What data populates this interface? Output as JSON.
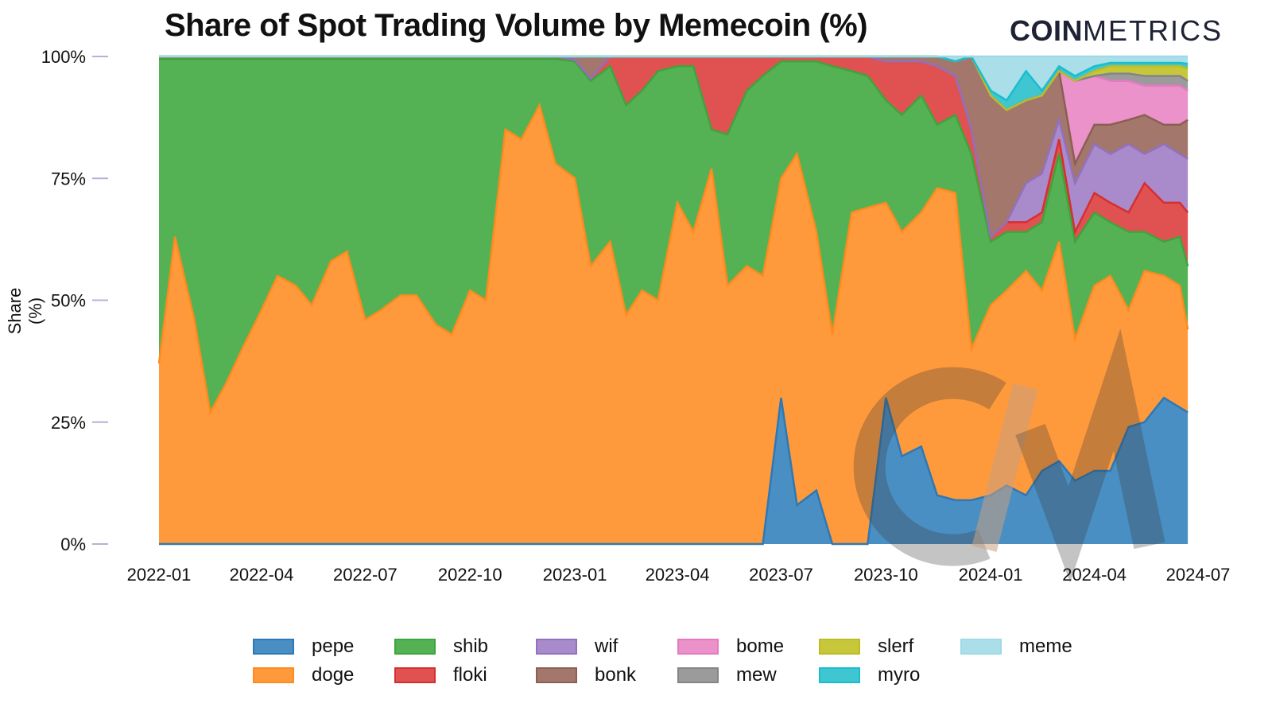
{
  "chart_data": {
    "type": "area",
    "stacked": true,
    "title": "Share of Spot Trading Volume by Memecoin (%)",
    "xlabel": "",
    "ylabel": "Share (%)",
    "ylim": [
      0,
      100
    ],
    "y_ticks": [
      "0%",
      "25%",
      "50%",
      "75%",
      "100%"
    ],
    "y_tick_values": [
      0,
      25,
      50,
      75,
      100
    ],
    "x_ticks": [
      "2022-01",
      "2022-04",
      "2022-07",
      "2022-10",
      "2023-01",
      "2023-04",
      "2023-07",
      "2023-10",
      "2024-01",
      "2024-04",
      "2024-07"
    ],
    "xlim": [
      "2022-01-01",
      "2024-07-01"
    ],
    "grid": false,
    "legend_position": "bottom",
    "x": [
      "2022-01-01",
      "2022-01-15",
      "2022-02-01",
      "2022-02-15",
      "2022-03-01",
      "2022-03-15",
      "2022-04-01",
      "2022-04-15",
      "2022-05-01",
      "2022-05-15",
      "2022-06-01",
      "2022-06-15",
      "2022-07-01",
      "2022-07-15",
      "2022-08-01",
      "2022-08-15",
      "2022-09-01",
      "2022-09-15",
      "2022-10-01",
      "2022-10-15",
      "2022-11-01",
      "2022-11-15",
      "2022-12-01",
      "2022-12-15",
      "2023-01-01",
      "2023-01-15",
      "2023-02-01",
      "2023-02-15",
      "2023-03-01",
      "2023-03-15",
      "2023-04-01",
      "2023-04-15",
      "2023-05-01",
      "2023-05-15",
      "2023-06-01",
      "2023-06-15",
      "2023-07-01",
      "2023-07-15",
      "2023-08-01",
      "2023-08-15",
      "2023-09-01",
      "2023-09-15",
      "2023-10-01",
      "2023-10-15",
      "2023-11-01",
      "2023-11-15",
      "2023-12-01",
      "2023-12-15",
      "2024-01-01",
      "2024-01-15",
      "2024-02-01",
      "2024-02-15",
      "2024-03-01",
      "2024-03-15",
      "2024-04-01",
      "2024-04-15",
      "2024-05-01",
      "2024-05-15",
      "2024-06-01",
      "2024-06-15",
      "2024-06-22"
    ],
    "series": [
      {
        "name": "pepe",
        "color": "#4a8fc3",
        "line": "#2f78b4",
        "values": [
          0,
          0,
          0,
          0,
          0,
          0,
          0,
          0,
          0,
          0,
          0,
          0,
          0,
          0,
          0,
          0,
          0,
          0,
          0,
          0,
          0,
          0,
          0,
          0,
          0,
          0,
          0,
          0,
          0,
          0,
          0,
          0,
          0,
          0,
          0,
          0,
          30,
          8,
          11,
          0,
          0,
          0,
          30,
          18,
          20,
          10,
          9,
          9,
          10,
          12,
          10,
          15,
          17,
          13,
          15,
          15,
          24,
          25,
          30,
          28,
          27
        ]
      },
      {
        "name": "doge",
        "color": "#ff9a3c",
        "line": "#ff8a1e",
        "values": [
          37,
          63,
          46,
          27,
          33,
          40,
          48,
          55,
          53,
          49,
          58,
          60,
          46,
          48,
          51,
          51,
          45,
          43,
          52,
          50,
          85,
          83,
          90,
          78,
          75,
          57,
          62,
          47,
          52,
          50,
          70,
          64,
          77,
          53,
          57,
          55,
          45,
          72,
          53,
          43,
          68,
          69,
          40,
          46,
          48,
          63,
          63,
          31,
          39,
          40,
          46,
          37,
          45,
          29,
          38,
          40,
          24,
          31,
          25,
          25,
          17
        ]
      },
      {
        "name": "shib",
        "color": "#55b254",
        "line": "#3ea43b",
        "values": [
          62.5,
          36.5,
          53.5,
          72.5,
          66.5,
          59.5,
          51.5,
          44.5,
          46.5,
          50.5,
          41.5,
          39.5,
          53.5,
          51.5,
          48.5,
          48.5,
          54.5,
          56.5,
          47.5,
          49.5,
          14.5,
          16.5,
          9.5,
          21.5,
          24,
          38,
          36,
          43,
          41,
          47,
          28,
          34,
          8,
          31,
          36,
          41,
          24,
          19,
          35,
          55,
          29,
          27,
          21,
          24,
          24,
          13,
          16,
          40,
          13,
          12,
          8,
          14,
          18,
          20,
          15,
          11,
          16,
          8,
          7,
          10,
          13
        ]
      },
      {
        "name": "floki",
        "color": "#e05252",
        "line": "#d62f2f",
        "values": [
          0.5,
          0.5,
          0.5,
          0.5,
          0.5,
          0.5,
          0.5,
          0.5,
          0.5,
          0.5,
          0.5,
          0.5,
          0.5,
          0.5,
          0.5,
          0.5,
          0.5,
          0.5,
          0.5,
          0.5,
          0.5,
          0.5,
          0.5,
          0.5,
          0.3,
          0.5,
          2,
          10,
          7,
          3,
          2,
          2,
          15,
          16,
          7,
          4,
          1,
          1,
          1,
          2,
          3,
          4,
          8,
          11,
          7,
          12,
          8,
          5,
          1,
          2,
          2,
          2,
          3,
          2,
          4,
          4,
          4,
          10,
          8,
          7,
          11
        ]
      },
      {
        "name": "wif",
        "color": "#a98bcc",
        "line": "#9271be",
        "values": [
          0,
          0,
          0,
          0,
          0,
          0,
          0,
          0,
          0,
          0,
          0,
          0,
          0,
          0,
          0,
          0,
          0,
          0,
          0,
          0,
          0,
          0,
          0,
          0,
          0,
          0,
          0,
          0,
          0,
          0,
          0,
          0,
          0,
          0,
          0,
          0,
          0,
          0,
          0,
          0,
          0,
          0,
          0,
          0,
          0,
          0,
          0,
          0,
          0,
          0,
          8,
          8,
          4,
          10,
          10,
          10,
          14,
          6,
          12,
          10,
          11
        ]
      },
      {
        "name": "bonk",
        "color": "#a3776c",
        "line": "#8c5f53",
        "values": [
          0,
          0,
          0,
          0,
          0,
          0,
          0,
          0,
          0,
          0,
          0,
          0,
          0,
          0,
          0,
          0,
          0,
          0,
          0,
          0,
          0,
          0,
          0,
          0,
          0.7,
          4.5,
          0,
          0,
          0,
          0,
          0,
          0,
          0,
          0,
          0,
          0,
          0,
          0,
          0,
          0,
          0,
          0,
          1,
          1,
          1,
          2,
          3,
          15,
          29,
          23,
          17,
          16,
          10,
          4,
          4,
          6,
          5,
          8,
          4,
          6,
          8
        ]
      },
      {
        "name": "bome",
        "color": "#ea92c9",
        "line": "#e47ac0",
        "values": [
          0,
          0,
          0,
          0,
          0,
          0,
          0,
          0,
          0,
          0,
          0,
          0,
          0,
          0,
          0,
          0,
          0,
          0,
          0,
          0,
          0,
          0,
          0,
          0,
          0,
          0,
          0,
          0,
          0,
          0,
          0,
          0,
          0,
          0,
          0,
          0,
          0,
          0,
          0,
          0,
          0,
          0,
          0,
          0,
          0,
          0,
          0,
          0,
          0,
          0,
          0,
          0,
          0,
          17,
          10,
          9,
          8,
          6,
          8,
          8,
          6
        ]
      },
      {
        "name": "mew",
        "color": "#9b9b9b",
        "line": "#858585",
        "values": [
          0,
          0,
          0,
          0,
          0,
          0,
          0,
          0,
          0,
          0,
          0,
          0,
          0,
          0,
          0,
          0,
          0,
          0,
          0,
          0,
          0,
          0,
          0,
          0,
          0,
          0,
          0,
          0,
          0,
          0,
          0,
          0,
          0,
          0,
          0,
          0,
          0,
          0,
          0,
          0,
          0,
          0,
          0,
          0,
          0,
          0,
          0,
          0,
          0,
          0,
          0,
          0,
          0,
          0,
          0,
          1.5,
          1.5,
          2,
          2,
          2,
          2
        ]
      },
      {
        "name": "slerf",
        "color": "#c7c73c",
        "line": "#bcbd22",
        "values": [
          0,
          0,
          0,
          0,
          0,
          0,
          0,
          0,
          0,
          0,
          0,
          0,
          0,
          0,
          0,
          0,
          0,
          0,
          0,
          0,
          0,
          0,
          0,
          0,
          0,
          0,
          0,
          0,
          0,
          0,
          0,
          0,
          0,
          0,
          0,
          0,
          0,
          0,
          0,
          0,
          0,
          0,
          0,
          0,
          0,
          0,
          0,
          0,
          0,
          0,
          0,
          0,
          0,
          0,
          1,
          1.5,
          1.5,
          2,
          2,
          2,
          2.5
        ]
      },
      {
        "name": "myro",
        "color": "#3fc6d1",
        "line": "#17becf",
        "values": [
          0,
          0,
          0,
          0,
          0,
          0,
          0,
          0,
          0,
          0,
          0,
          0,
          0,
          0,
          0,
          0,
          0,
          0,
          0,
          0,
          0,
          0,
          0,
          0,
          0,
          0,
          0,
          0,
          0,
          0,
          0,
          0,
          0,
          0,
          0,
          0,
          0,
          0,
          0,
          0,
          0,
          0,
          0,
          0,
          0,
          0,
          0,
          0,
          1,
          2,
          6,
          1,
          1,
          1,
          1,
          0.7,
          0.7,
          0.7,
          0.7,
          0.7,
          1
        ]
      },
      {
        "name": "meme",
        "color": "#aadfea",
        "line": "#9ed9e5",
        "values": [
          0,
          0,
          0,
          0,
          0,
          0,
          0,
          0,
          0,
          0,
          0,
          0,
          0,
          0,
          0,
          0,
          0,
          0,
          0,
          0,
          0,
          0,
          0,
          0,
          0,
          0,
          0,
          0,
          0,
          0,
          0,
          0,
          0,
          0,
          0,
          0,
          0,
          0,
          0,
          0,
          0,
          0,
          0,
          0,
          0,
          0,
          1,
          0,
          7,
          9,
          3,
          7,
          2,
          4,
          2,
          1.3,
          1.3,
          1.3,
          1.3,
          1.3,
          1.5
        ]
      }
    ],
    "legend_order": [
      "pepe",
      "shib",
      "wif",
      "bome",
      "slerf",
      "meme",
      "doge",
      "floki",
      "bonk",
      "mew",
      "myro"
    ]
  },
  "logo": {
    "bold": "COIN",
    "light": "METRICS"
  }
}
